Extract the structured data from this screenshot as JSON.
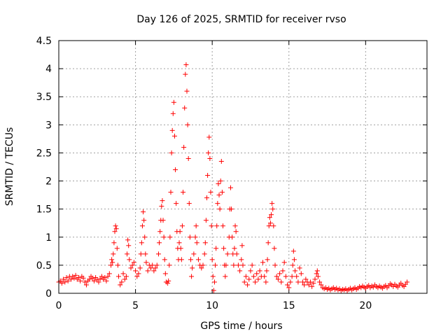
{
  "chart_data": {
    "type": "scatter",
    "title": "Day 126 of 2025, SRMTID for receiver rvso",
    "xlabel": "GPS time / hours",
    "ylabel": "SRMTID / TECUs",
    "xlim": [
      0,
      24
    ],
    "ylim": [
      0,
      4.5
    ],
    "xticks": [
      0,
      5,
      10,
      15,
      20
    ],
    "xtick_labels": [
      "0",
      "5",
      "10",
      "15",
      "20"
    ],
    "yticks": [
      0,
      0.5,
      1,
      1.5,
      2,
      2.5,
      3,
      3.5,
      4,
      4.5
    ],
    "ytick_labels": [
      "0",
      "0.5",
      "1",
      "1.5",
      "2",
      "2.5",
      "3",
      "3.5",
      "4",
      "4.5"
    ],
    "grid": true,
    "marker": "+",
    "series": [
      {
        "name": "SRMTID",
        "color": "#ff0000",
        "points": [
          [
            0.0,
            0.2
          ],
          [
            0.1,
            0.22
          ],
          [
            0.2,
            0.18
          ],
          [
            0.3,
            0.25
          ],
          [
            0.4,
            0.2
          ],
          [
            0.5,
            0.28
          ],
          [
            0.6,
            0.22
          ],
          [
            0.7,
            0.3
          ],
          [
            0.8,
            0.25
          ],
          [
            0.9,
            0.3
          ],
          [
            1.0,
            0.27
          ],
          [
            1.1,
            0.32
          ],
          [
            1.2,
            0.25
          ],
          [
            1.3,
            0.28
          ],
          [
            1.4,
            0.22
          ],
          [
            1.5,
            0.3
          ],
          [
            1.6,
            0.27
          ],
          [
            1.7,
            0.2
          ],
          [
            1.8,
            0.15
          ],
          [
            1.9,
            0.22
          ],
          [
            2.0,
            0.25
          ],
          [
            2.1,
            0.3
          ],
          [
            2.2,
            0.27
          ],
          [
            2.3,
            0.22
          ],
          [
            2.4,
            0.28
          ],
          [
            2.5,
            0.24
          ],
          [
            2.6,
            0.2
          ],
          [
            2.7,
            0.26
          ],
          [
            2.8,
            0.3
          ],
          [
            2.9,
            0.25
          ],
          [
            3.0,
            0.28
          ],
          [
            3.1,
            0.22
          ],
          [
            3.2,
            0.3
          ],
          [
            3.3,
            0.35
          ],
          [
            3.4,
            0.5
          ],
          [
            3.45,
            0.6
          ],
          [
            3.5,
            0.55
          ],
          [
            3.55,
            0.7
          ],
          [
            3.6,
            0.9
          ],
          [
            3.65,
            1.1
          ],
          [
            3.7,
            1.2
          ],
          [
            3.75,
            1.15
          ],
          [
            3.8,
            0.8
          ],
          [
            3.85,
            0.5
          ],
          [
            3.9,
            0.3
          ],
          [
            4.0,
            0.15
          ],
          [
            4.1,
            0.2
          ],
          [
            4.2,
            0.35
          ],
          [
            4.3,
            0.25
          ],
          [
            4.4,
            0.3
          ],
          [
            4.45,
            0.7
          ],
          [
            4.5,
            0.95
          ],
          [
            4.55,
            0.85
          ],
          [
            4.6,
            0.6
          ],
          [
            4.7,
            0.45
          ],
          [
            4.8,
            0.5
          ],
          [
            4.9,
            0.55
          ],
          [
            5.0,
            0.4
          ],
          [
            5.1,
            0.3
          ],
          [
            5.2,
            0.35
          ],
          [
            5.3,
            0.45
          ],
          [
            5.35,
            0.7
          ],
          [
            5.4,
            0.9
          ],
          [
            5.45,
            1.2
          ],
          [
            5.5,
            1.45
          ],
          [
            5.55,
            1.3
          ],
          [
            5.6,
            1.0
          ],
          [
            5.65,
            0.7
          ],
          [
            5.7,
            0.55
          ],
          [
            5.8,
            0.4
          ],
          [
            5.9,
            0.5
          ],
          [
            6.0,
            0.45
          ],
          [
            6.1,
            0.5
          ],
          [
            6.2,
            0.4
          ],
          [
            6.3,
            0.45
          ],
          [
            6.4,
            0.5
          ],
          [
            6.5,
            0.7
          ],
          [
            6.55,
            0.9
          ],
          [
            6.6,
            1.1
          ],
          [
            6.65,
            1.3
          ],
          [
            6.7,
            1.55
          ],
          [
            6.75,
            1.65
          ],
          [
            6.8,
            1.3
          ],
          [
            6.85,
            1.0
          ],
          [
            6.9,
            0.6
          ],
          [
            6.95,
            0.35
          ],
          [
            7.0,
            0.2
          ],
          [
            7.1,
            0.18
          ],
          [
            7.15,
            0.22
          ],
          [
            7.2,
            0.5
          ],
          [
            7.25,
            1.0
          ],
          [
            7.3,
            1.8
          ],
          [
            7.35,
            2.5
          ],
          [
            7.4,
            2.9
          ],
          [
            7.45,
            3.2
          ],
          [
            7.5,
            3.4
          ],
          [
            7.55,
            2.8
          ],
          [
            7.6,
            2.2
          ],
          [
            7.65,
            1.6
          ],
          [
            7.7,
            1.1
          ],
          [
            7.75,
            0.8
          ],
          [
            7.8,
            0.6
          ],
          [
            7.85,
            0.9
          ],
          [
            7.9,
            1.1
          ],
          [
            7.95,
            0.8
          ],
          [
            8.0,
            0.6
          ],
          [
            8.05,
            1.2
          ],
          [
            8.1,
            1.8
          ],
          [
            8.15,
            2.6
          ],
          [
            8.2,
            3.3
          ],
          [
            8.25,
            3.9
          ],
          [
            8.3,
            4.07
          ],
          [
            8.35,
            3.6
          ],
          [
            8.4,
            3.0
          ],
          [
            8.45,
            2.4
          ],
          [
            8.5,
            1.6
          ],
          [
            8.55,
            1.0
          ],
          [
            8.6,
            0.6
          ],
          [
            8.65,
            0.3
          ],
          [
            8.7,
            0.45
          ],
          [
            8.8,
            0.7
          ],
          [
            8.9,
            1.0
          ],
          [
            8.95,
            1.2
          ],
          [
            9.0,
            0.9
          ],
          [
            9.1,
            0.6
          ],
          [
            9.2,
            0.5
          ],
          [
            9.3,
            0.45
          ],
          [
            9.4,
            0.5
          ],
          [
            9.5,
            0.7
          ],
          [
            9.55,
            0.9
          ],
          [
            9.6,
            1.3
          ],
          [
            9.65,
            1.7
          ],
          [
            9.7,
            2.1
          ],
          [
            9.75,
            2.5
          ],
          [
            9.8,
            2.78
          ],
          [
            9.85,
            2.4
          ],
          [
            9.9,
            1.8
          ],
          [
            9.95,
            1.2
          ],
          [
            10.0,
            0.6
          ],
          [
            10.05,
            0.3
          ],
          [
            10.1,
            0.05
          ],
          [
            10.15,
            0.2
          ],
          [
            10.2,
            0.5
          ],
          [
            10.25,
            0.8
          ],
          [
            10.3,
            1.2
          ],
          [
            10.35,
            1.6
          ],
          [
            10.4,
            1.95
          ],
          [
            10.45,
            1.75
          ],
          [
            10.5,
            1.5
          ],
          [
            10.55,
            2.0
          ],
          [
            10.6,
            2.35
          ],
          [
            10.65,
            1.8
          ],
          [
            10.7,
            1.2
          ],
          [
            10.75,
            0.8
          ],
          [
            10.8,
            0.5
          ],
          [
            10.85,
            0.3
          ],
          [
            10.9,
            0.5
          ],
          [
            11.0,
            0.7
          ],
          [
            11.1,
            1.0
          ],
          [
            11.15,
            1.5
          ],
          [
            11.2,
            1.88
          ],
          [
            11.25,
            1.5
          ],
          [
            11.3,
            1.0
          ],
          [
            11.35,
            0.7
          ],
          [
            11.4,
            0.5
          ],
          [
            11.45,
            0.8
          ],
          [
            11.5,
            1.2
          ],
          [
            11.55,
            1.1
          ],
          [
            11.6,
            0.7
          ],
          [
            11.7,
            0.5
          ],
          [
            11.8,
            0.4
          ],
          [
            11.9,
            0.6
          ],
          [
            11.95,
            0.85
          ],
          [
            12.0,
            0.5
          ],
          [
            12.1,
            0.2
          ],
          [
            12.2,
            0.3
          ],
          [
            12.3,
            0.15
          ],
          [
            12.4,
            0.25
          ],
          [
            12.5,
            0.4
          ],
          [
            12.6,
            0.5
          ],
          [
            12.7,
            0.3
          ],
          [
            12.8,
            0.2
          ],
          [
            12.9,
            0.35
          ],
          [
            13.0,
            0.25
          ],
          [
            13.1,
            0.4
          ],
          [
            13.2,
            0.3
          ],
          [
            13.3,
            0.55
          ],
          [
            13.4,
            0.3
          ],
          [
            13.5,
            0.2
          ],
          [
            13.55,
            0.4
          ],
          [
            13.6,
            0.6
          ],
          [
            13.65,
            0.9
          ],
          [
            13.7,
            1.2
          ],
          [
            13.75,
            1.35
          ],
          [
            13.8,
            1.25
          ],
          [
            13.85,
            1.4
          ],
          [
            13.9,
            1.6
          ],
          [
            13.95,
            1.5
          ],
          [
            14.0,
            1.2
          ],
          [
            14.05,
            0.8
          ],
          [
            14.1,
            0.5
          ],
          [
            14.2,
            0.3
          ],
          [
            14.3,
            0.25
          ],
          [
            14.4,
            0.35
          ],
          [
            14.5,
            0.2
          ],
          [
            14.6,
            0.4
          ],
          [
            14.7,
            0.55
          ],
          [
            14.8,
            0.3
          ],
          [
            14.9,
            0.15
          ],
          [
            15.0,
            0.1
          ],
          [
            15.1,
            0.2
          ],
          [
            15.2,
            0.3
          ],
          [
            15.25,
            0.5
          ],
          [
            15.3,
            0.75
          ],
          [
            15.35,
            0.6
          ],
          [
            15.4,
            0.4
          ],
          [
            15.5,
            0.3
          ],
          [
            15.6,
            0.2
          ],
          [
            15.7,
            0.45
          ],
          [
            15.8,
            0.35
          ],
          [
            15.9,
            0.2
          ],
          [
            16.0,
            0.15
          ],
          [
            16.1,
            0.25
          ],
          [
            16.2,
            0.2
          ],
          [
            16.3,
            0.15
          ],
          [
            16.4,
            0.2
          ],
          [
            16.5,
            0.12
          ],
          [
            16.6,
            0.18
          ],
          [
            16.7,
            0.25
          ],
          [
            16.8,
            0.35
          ],
          [
            16.85,
            0.4
          ],
          [
            16.9,
            0.3
          ],
          [
            17.0,
            0.2
          ],
          [
            17.1,
            0.15
          ],
          [
            17.2,
            0.1
          ],
          [
            17.3,
            0.08
          ],
          [
            17.4,
            0.1
          ],
          [
            17.5,
            0.07
          ],
          [
            17.6,
            0.09
          ],
          [
            17.7,
            0.06
          ],
          [
            17.8,
            0.08
          ],
          [
            17.9,
            0.1
          ],
          [
            18.0,
            0.07
          ],
          [
            18.1,
            0.09
          ],
          [
            18.2,
            0.06
          ],
          [
            18.3,
            0.08
          ],
          [
            18.4,
            0.05
          ],
          [
            18.5,
            0.07
          ],
          [
            18.6,
            0.06
          ],
          [
            18.7,
            0.08
          ],
          [
            18.8,
            0.05
          ],
          [
            18.9,
            0.07
          ],
          [
            19.0,
            0.09
          ],
          [
            19.1,
            0.06
          ],
          [
            19.2,
            0.08
          ],
          [
            19.3,
            0.1
          ],
          [
            19.4,
            0.07
          ],
          [
            19.5,
            0.09
          ],
          [
            19.6,
            0.12
          ],
          [
            19.7,
            0.1
          ],
          [
            19.8,
            0.13
          ],
          [
            19.9,
            0.11
          ],
          [
            20.0,
            0.09
          ],
          [
            20.1,
            0.12
          ],
          [
            20.2,
            0.14
          ],
          [
            20.3,
            0.1
          ],
          [
            20.4,
            0.13
          ],
          [
            20.5,
            0.11
          ],
          [
            20.6,
            0.15
          ],
          [
            20.7,
            0.12
          ],
          [
            20.8,
            0.1
          ],
          [
            20.9,
            0.13
          ],
          [
            21.0,
            0.11
          ],
          [
            21.1,
            0.09
          ],
          [
            21.2,
            0.12
          ],
          [
            21.3,
            0.14
          ],
          [
            21.4,
            0.1
          ],
          [
            21.5,
            0.13
          ],
          [
            21.6,
            0.17
          ],
          [
            21.7,
            0.15
          ],
          [
            21.8,
            0.12
          ],
          [
            21.9,
            0.16
          ],
          [
            22.0,
            0.13
          ],
          [
            22.1,
            0.11
          ],
          [
            22.2,
            0.15
          ],
          [
            22.3,
            0.18
          ],
          [
            22.4,
            0.14
          ],
          [
            22.5,
            0.12
          ],
          [
            22.6,
            0.16
          ],
          [
            22.7,
            0.2
          ]
        ]
      }
    ]
  }
}
